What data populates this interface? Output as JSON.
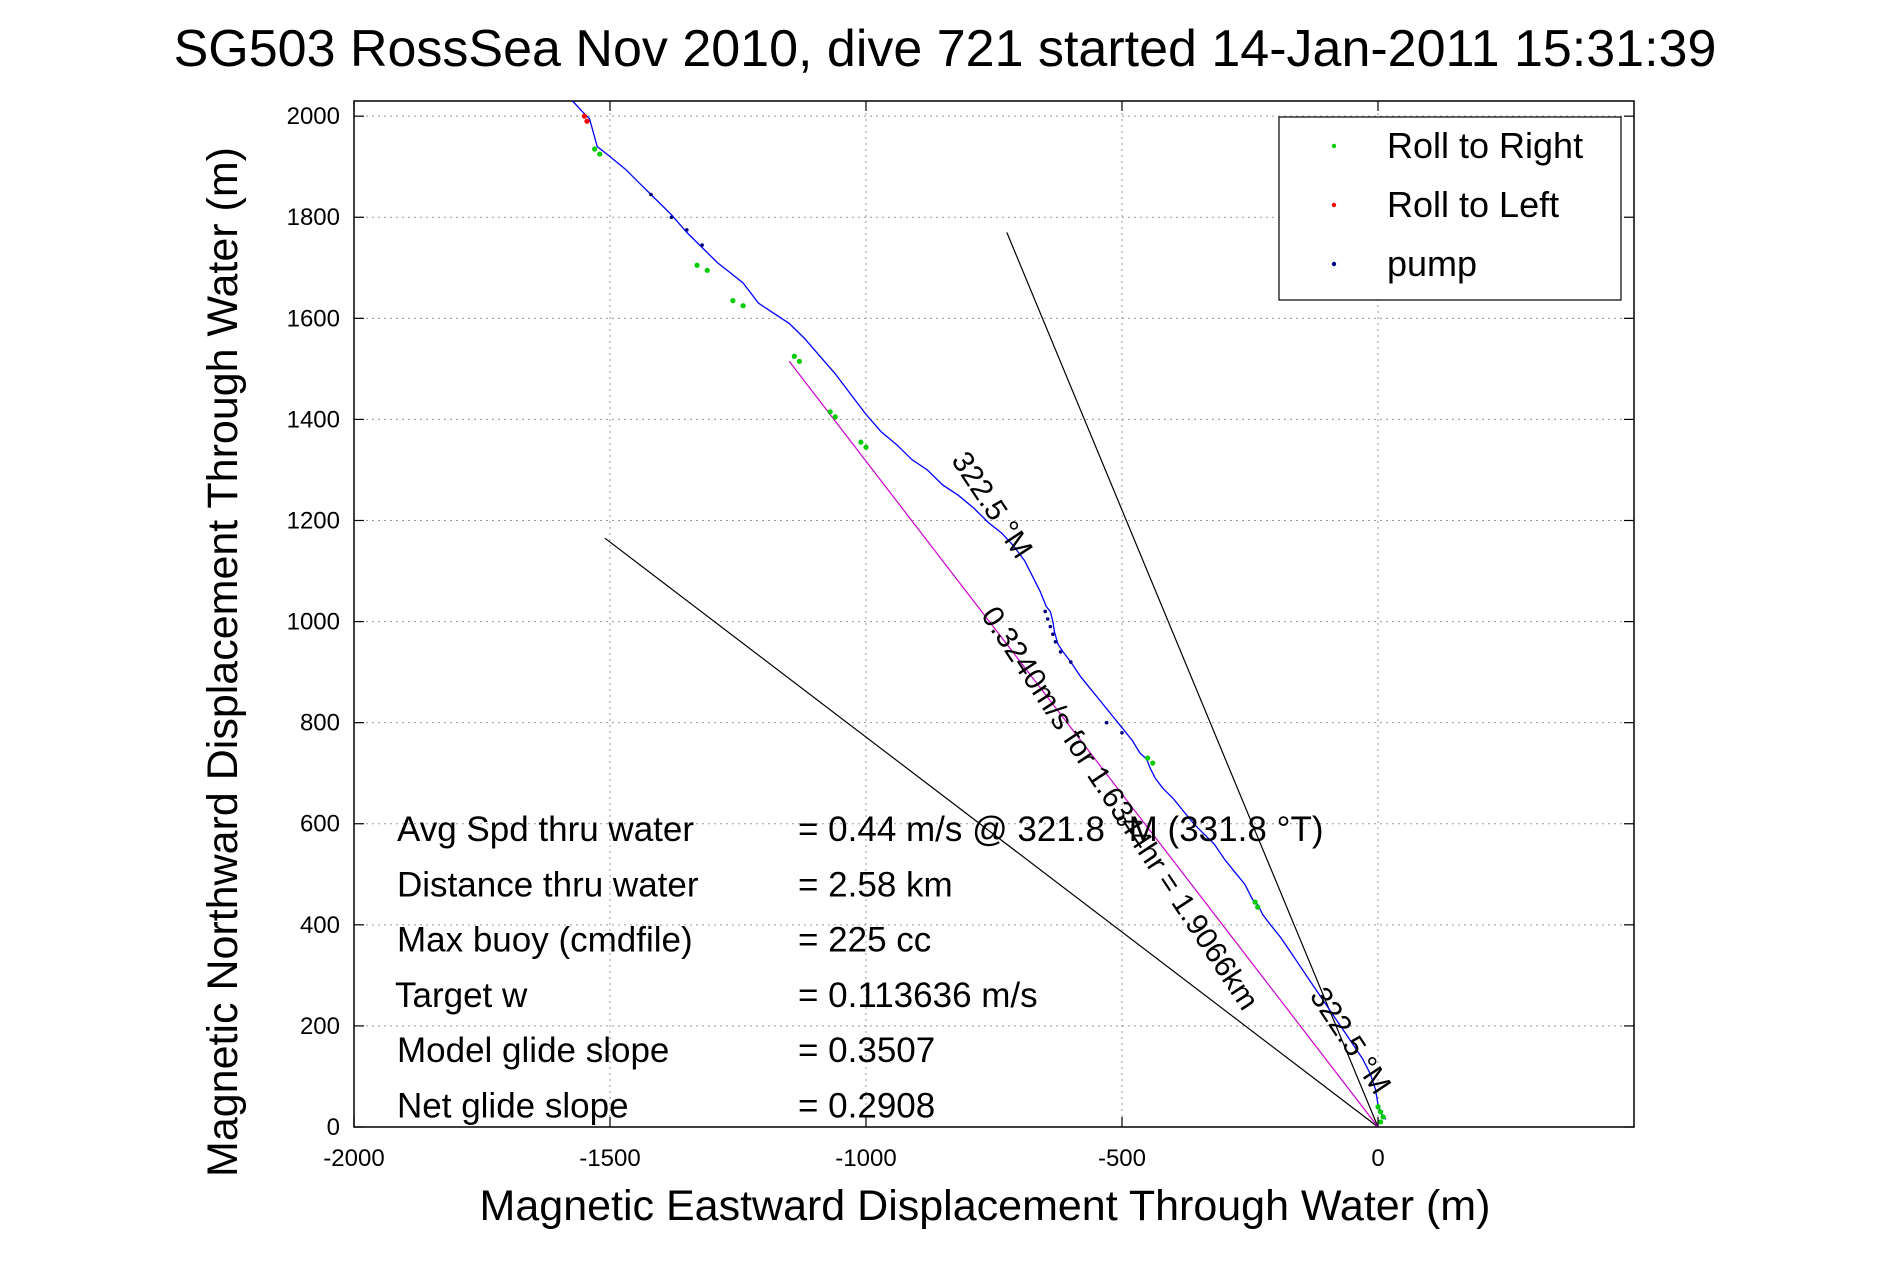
{
  "chart_data": {
    "type": "line",
    "title": "SG503 RossSea Nov 2010, dive 721 started 14-Jan-2011 15:31:39",
    "xlabel": "Magnetic Eastward Displacement Through Water (m)",
    "ylabel": "Magnetic Northward Displacement Through Water (m)",
    "xlim": [
      -2000,
      500
    ],
    "ylim": [
      0,
      2030
    ],
    "xticks": [
      -2000,
      -1500,
      -1000,
      -500,
      0
    ],
    "yticks": [
      0,
      200,
      400,
      600,
      800,
      1000,
      1200,
      1400,
      1600,
      1800,
      2000
    ],
    "grid": true,
    "legend": {
      "position": "top-right",
      "entries": [
        {
          "label": "Roll to Right",
          "color": "#00cc00"
        },
        {
          "label": "Roll to Left",
          "color": "#ff0000"
        },
        {
          "label": "pump",
          "color": "#000080"
        }
      ]
    },
    "track": {
      "color": "#0000ff",
      "x": [
        -1573,
        -1555,
        -1540,
        -1525,
        -1500,
        -1470,
        -1440,
        -1410,
        -1380,
        -1350,
        -1320,
        -1290,
        -1265,
        -1240,
        -1210,
        -1180,
        -1150,
        -1120,
        -1090,
        -1060,
        -1030,
        -1000,
        -970,
        -940,
        -910,
        -880,
        -850,
        -820,
        -790,
        -760,
        -735,
        -712,
        -690,
        -675,
        -660,
        -648,
        -640,
        -635,
        -632,
        -625,
        -615,
        -600,
        -580,
        -560,
        -540,
        -520,
        -500,
        -480,
        -465,
        -452,
        -445,
        -435,
        -420,
        -400,
        -380,
        -360,
        -340,
        -320,
        -300,
        -280,
        -260,
        -245,
        -235,
        -225,
        -210,
        -190,
        -170,
        -150,
        -130,
        -110,
        -90,
        -70,
        -50,
        -30,
        -15,
        -5,
        0,
        5,
        10,
        15
      ],
      "y": [
        2030,
        2010,
        1995,
        1940,
        1920,
        1895,
        1865,
        1835,
        1805,
        1770,
        1740,
        1710,
        1690,
        1670,
        1630,
        1610,
        1590,
        1560,
        1525,
        1490,
        1450,
        1410,
        1375,
        1350,
        1320,
        1300,
        1270,
        1250,
        1225,
        1195,
        1175,
        1150,
        1120,
        1090,
        1060,
        1030,
        1020,
        1000,
        980,
        955,
        940,
        920,
        890,
        865,
        840,
        815,
        790,
        765,
        740,
        728,
        710,
        690,
        670,
        650,
        625,
        600,
        580,
        560,
        530,
        505,
        480,
        450,
        440,
        420,
        400,
        375,
        345,
        315,
        285,
        255,
        225,
        195,
        165,
        135,
        105,
        75,
        45,
        30,
        20,
        15
      ]
    },
    "markers": {
      "roll_right": {
        "x": [
          -1530,
          -1520,
          -1330,
          -1310,
          -1260,
          -1240,
          -1140,
          -1130,
          -1070,
          -1060,
          -1010,
          -1000,
          -450,
          -440,
          -240,
          -235,
          0,
          5,
          10,
          5
        ],
        "y": [
          1935,
          1925,
          1705,
          1695,
          1635,
          1625,
          1525,
          1515,
          1415,
          1405,
          1355,
          1345,
          730,
          720,
          445,
          435,
          40,
          30,
          20,
          10
        ]
      },
      "roll_left": {
        "x": [
          -1550,
          -1545
        ],
        "y": [
          2000,
          1990
        ]
      },
      "pump": {
        "x": [
          -1420,
          -1380,
          -1350,
          -1320,
          -650,
          -645,
          -640,
          -635,
          -630,
          -620,
          -600,
          -530,
          -500
        ],
        "y": [
          1845,
          1800,
          1775,
          1745,
          1020,
          1005,
          990,
          975,
          960,
          940,
          920,
          800,
          780
        ]
      }
    },
    "reference_lines": [
      {
        "x": [
          -1510,
          0
        ],
        "y": [
          1165,
          0
        ],
        "color": "#000000"
      },
      {
        "x": [
          -725,
          0
        ],
        "y": [
          1770,
          0
        ],
        "color": "#000000"
      },
      {
        "x": [
          -1150,
          0
        ],
        "y": [
          1515,
          0
        ],
        "color": "#cc00cc"
      }
    ],
    "line_annotations": [
      {
        "text": "322.5 °M",
        "x": -770,
        "y": 1220,
        "angle": 56.5
      },
      {
        "text": "0.3240m/s for 1.6344hr = 1.9066km",
        "x": -520,
        "y": 620,
        "angle": 56.5
      },
      {
        "text": "322.5 °M",
        "x": -70,
        "y": 160,
        "angle": 56.5
      }
    ],
    "stats": [
      {
        "label": "Avg Spd thru water",
        "value": "=  0.44 m/s @ 321.8 °M (331.8 °T)"
      },
      {
        "label": "Distance thru water",
        "value": "=  2.58 km"
      },
      {
        "label": "Max buoy (cmdfile)",
        "value": "= 225 cc"
      },
      {
        "label": "Target w",
        "value": "= 0.113636 m/s"
      },
      {
        "label": "Model glide slope",
        "value": "= 0.3507"
      },
      {
        "label": "Net glide slope",
        "value": "= 0.2908"
      }
    ]
  }
}
